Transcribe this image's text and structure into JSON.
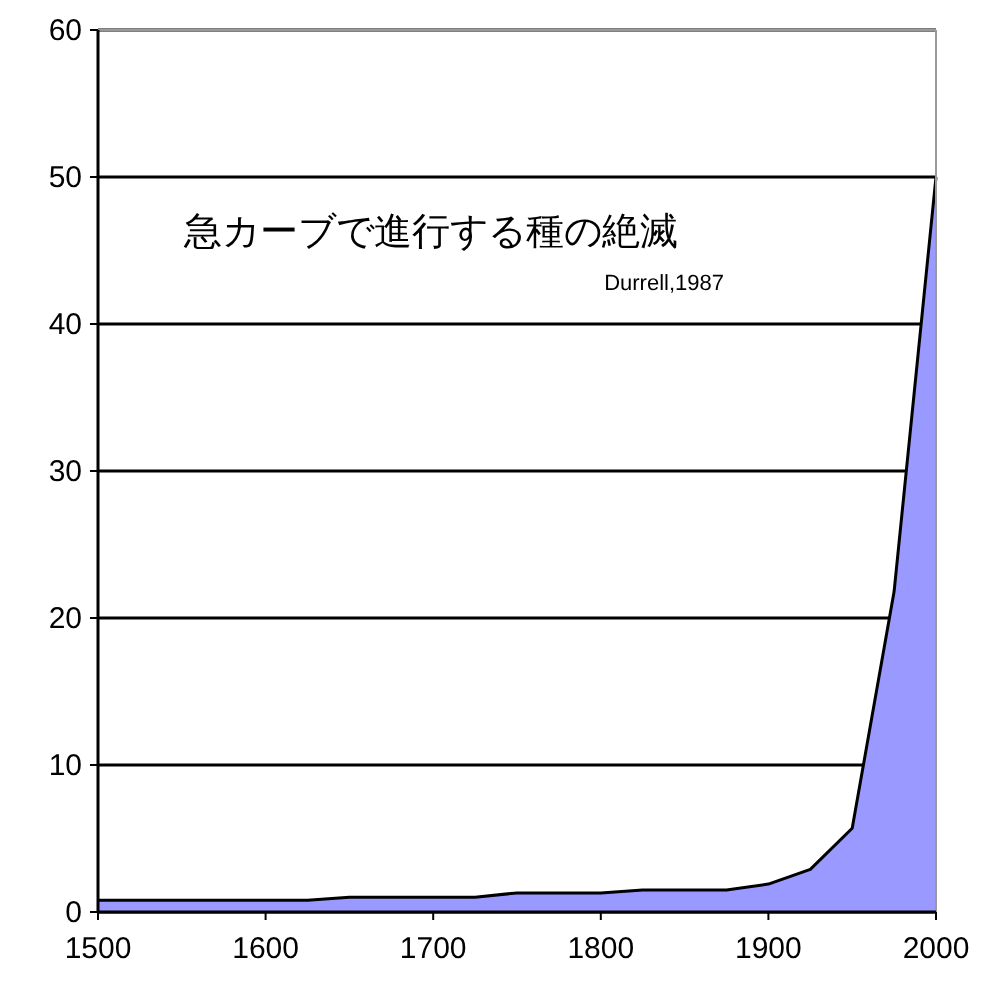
{
  "chart_data": {
    "type": "area",
    "title": "急カーブで進行する種の絶滅",
    "annotations": [
      "Durrell,1987"
    ],
    "x": [
      1500,
      1525,
      1550,
      1575,
      1600,
      1625,
      1650,
      1675,
      1700,
      1725,
      1750,
      1775,
      1800,
      1825,
      1850,
      1875,
      1900,
      1925,
      1950,
      1975,
      2000
    ],
    "series": [
      {
        "color": "#9999ff",
        "values": [
          0.8,
          0.8,
          0.8,
          0.8,
          0.8,
          0.8,
          1.0,
          1.0,
          1.0,
          1.0,
          1.3,
          1.3,
          1.3,
          1.5,
          1.5,
          1.5,
          1.9,
          2.9,
          5.7,
          21.8,
          50
        ]
      }
    ],
    "xlim": [
      1500,
      2000
    ],
    "xticks": [
      1500,
      1600,
      1700,
      1800,
      1900,
      2000
    ],
    "ylim": [
      0,
      60
    ],
    "yticks": [
      0,
      10,
      20,
      30,
      40,
      50,
      60
    ],
    "grid": "y"
  }
}
